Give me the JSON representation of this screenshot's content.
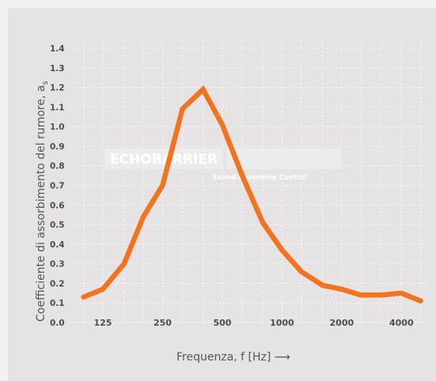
{
  "colors": {
    "line": "#f37321",
    "grid": "#ffffff",
    "panel_background": "#e5e3e3",
    "text": "#4d4d4d"
  },
  "watermark": {
    "logo_text": "ECHOBARRIER",
    "tagline": "Sound absorbing Control"
  },
  "chart_data": {
    "type": "line",
    "xlabel": "Frequenza, f [Hz] ⟶",
    "ylabel": "Coefficiente di assorbimento del rumore, a",
    "ylabel_subscript": "s",
    "y_ticks": [
      "0.0",
      "0.1",
      "0.2",
      "0.3",
      "0.4",
      "0.5",
      "0.6",
      "0.7",
      "0.8",
      "0.9",
      "1.0",
      "1.1",
      "1.2",
      "1.3",
      "1.4"
    ],
    "x_ticks": [
      {
        "label": "125",
        "x": 125
      },
      {
        "label": "250",
        "x": 250
      },
      {
        "label": "500",
        "x": 500
      },
      {
        "label": "1000",
        "x": 1000
      },
      {
        "label": "2000",
        "x": 2000
      },
      {
        "label": "4000",
        "x": 4000
      }
    ],
    "x_scale": "log",
    "xlim": [
      85,
      5400
    ],
    "ylim": [
      0,
      1.4
    ],
    "grid": true,
    "series": [
      {
        "x": [
          100,
          125,
          160,
          200,
          250,
          315,
          400,
          500,
          630,
          800,
          1000,
          1250,
          1600,
          2000,
          2500,
          3150,
          4000,
          5000
        ],
        "values": [
          0.13,
          0.17,
          0.3,
          0.54,
          0.7,
          1.09,
          1.19,
          1.01,
          0.75,
          0.51,
          0.37,
          0.26,
          0.19,
          0.17,
          0.14,
          0.14,
          0.15,
          0.11
        ]
      }
    ]
  }
}
